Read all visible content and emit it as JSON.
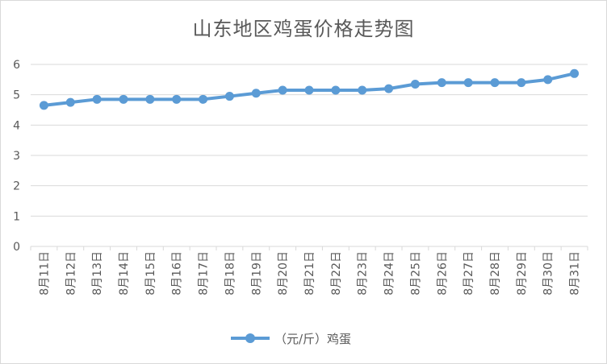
{
  "chart_data": {
    "type": "line",
    "title": "山东地区鸡蛋价格走势图",
    "categories": [
      "8月11日",
      "8月12日",
      "8月13日",
      "8月14日",
      "8月15日",
      "8月16日",
      "8月17日",
      "8月18日",
      "8月19日",
      "8月20日",
      "8月21日",
      "8月22日",
      "8月23日",
      "8月24日",
      "8月25日",
      "8月26日",
      "8月27日",
      "8月28日",
      "8月29日",
      "8月30日",
      "8月31日"
    ],
    "series": [
      {
        "name": "（元/斤）鸡蛋",
        "values": [
          4.65,
          4.75,
          4.85,
          4.85,
          4.85,
          4.85,
          4.85,
          4.95,
          5.05,
          5.15,
          5.15,
          5.15,
          5.15,
          5.2,
          5.35,
          5.4,
          5.4,
          5.4,
          5.4,
          5.5,
          5.7
        ]
      }
    ],
    "yticks": [
      "0",
      "1",
      "2",
      "3",
      "4",
      "5",
      "6"
    ],
    "ylim": [
      0,
      6
    ],
    "grid": true,
    "legend": "bottom",
    "colors": {
      "series": "#5b9bd5",
      "grid": "#d9d9d9",
      "text": "#595959"
    }
  }
}
